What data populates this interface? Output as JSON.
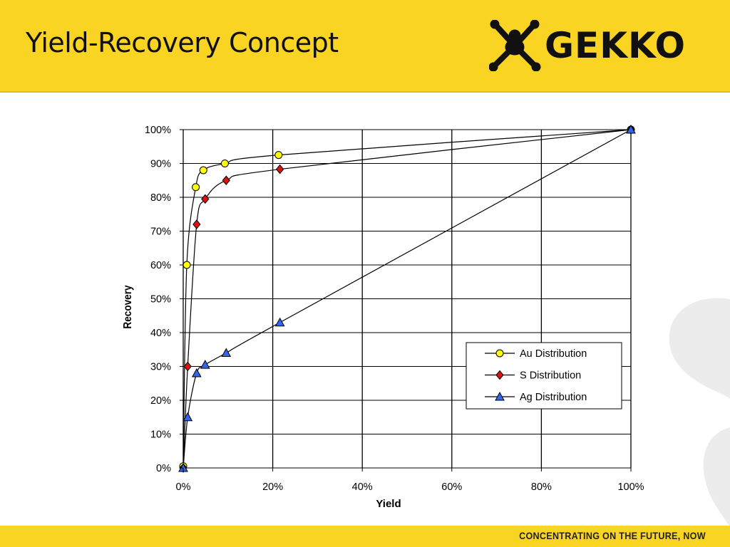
{
  "header": {
    "title": "Yield-Recovery Concept",
    "logo_text": "GEKKO",
    "logo_icon": "gecko-icon"
  },
  "footer": {
    "tagline": "CONCENTRATING ON THE FUTURE, NOW"
  },
  "colors": {
    "header_bg": "#f9d423",
    "au": "#ffff00",
    "s": "#e01010",
    "ag": "#3366ee"
  },
  "chart_data": {
    "type": "scatter",
    "title": "",
    "xlabel": "Yield",
    "ylabel": "Recovery",
    "xlim": [
      0,
      100
    ],
    "ylim": [
      0,
      100
    ],
    "x_ticks": [
      "0%",
      "20%",
      "40%",
      "60%",
      "80%",
      "100%"
    ],
    "y_ticks": [
      "0%",
      "10%",
      "20%",
      "30%",
      "40%",
      "50%",
      "60%",
      "70%",
      "80%",
      "90%",
      "100%"
    ],
    "grid": "vertical and horizontal",
    "legend_position": "bottom-right",
    "series": [
      {
        "name": "Au Distribution",
        "marker": "circle",
        "color": "#ffff00",
        "points": [
          [
            0,
            0.5
          ],
          [
            0.8,
            60
          ],
          [
            2.8,
            83
          ],
          [
            4.5,
            88
          ],
          [
            9.3,
            90
          ],
          [
            21.3,
            92.5
          ],
          [
            100,
            100
          ]
        ]
      },
      {
        "name": "S Distribution",
        "marker": "diamond",
        "color": "#e01010",
        "points": [
          [
            0,
            0
          ],
          [
            1.0,
            30
          ],
          [
            3.0,
            72
          ],
          [
            4.9,
            79.5
          ],
          [
            9.6,
            85
          ],
          [
            21.6,
            88.3
          ],
          [
            100,
            100
          ]
        ]
      },
      {
        "name": "Ag Distribution",
        "marker": "triangle",
        "color": "#3366ee",
        "points": [
          [
            0,
            0
          ],
          [
            1.0,
            15
          ],
          [
            3.0,
            28
          ],
          [
            4.9,
            30.5
          ],
          [
            9.6,
            34
          ],
          [
            21.6,
            43
          ],
          [
            100,
            100
          ]
        ]
      }
    ]
  }
}
